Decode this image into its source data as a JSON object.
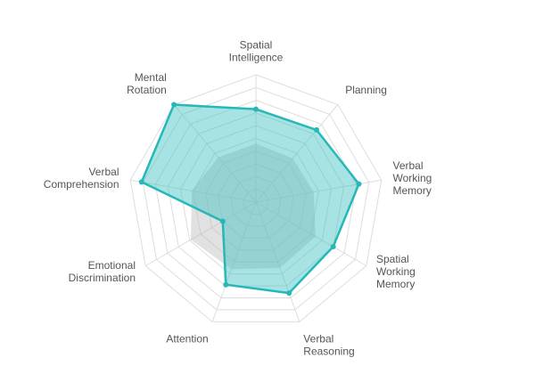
{
  "chart_data": {
    "type": "radar",
    "title": "",
    "axes": [
      {
        "lines": [
          "Spatial",
          "Intelligence"
        ]
      },
      {
        "lines": [
          "Planning"
        ]
      },
      {
        "lines": [
          "Verbal",
          "Working",
          "Memory"
        ]
      },
      {
        "lines": [
          "Spatial",
          "Working",
          "Memory"
        ]
      },
      {
        "lines": [
          "Verbal",
          "Reasoning"
        ]
      },
      {
        "lines": [
          "Attention"
        ]
      },
      {
        "lines": [
          "Emotional",
          "Discrimination"
        ]
      },
      {
        "lines": [
          "Verbal",
          "Comprehension"
        ]
      },
      {
        "lines": [
          "Mental",
          "Rotation"
        ]
      }
    ],
    "range": [
      0,
      10
    ],
    "rings": 10,
    "series": [
      {
        "values": [
          7.3,
          7.4,
          8.2,
          7.0,
          7.6,
          6.9,
          3.0,
          9.1,
          10.0
        ]
      },
      {
        "values": [
          4.6,
          4.5,
          4.6,
          5.4,
          5.5,
          5.6,
          5.9,
          5.1,
          4.6
        ]
      }
    ],
    "colors": {
      "primary_stroke": "#26b8b8",
      "primary_fill": "#3ec1c1",
      "secondary_fill": "#bdbdbd",
      "grid": "#dddddd"
    }
  }
}
